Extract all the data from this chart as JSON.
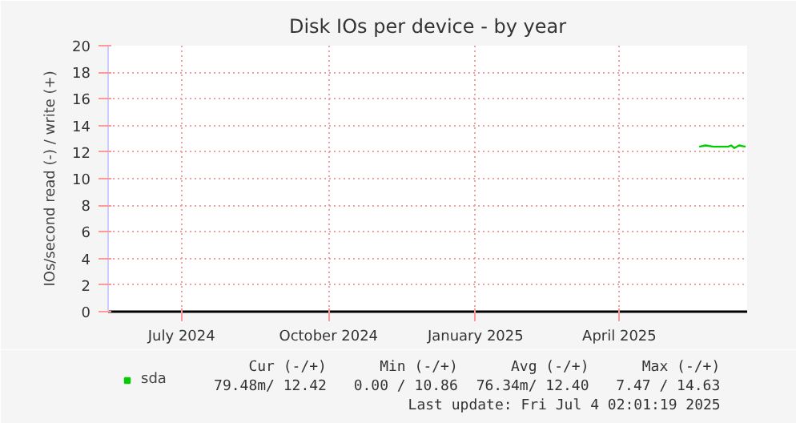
{
  "chart_data": {
    "type": "line",
    "title": "Disk IOs per device - by year",
    "ylabel": "IOs/second read (-) / write (+)",
    "xlim": [
      "2024-05-16",
      "2025-06-20"
    ],
    "xticks": [
      {
        "value": "2024-07-01",
        "label": "July 2024"
      },
      {
        "value": "2024-10-01",
        "label": "October 2024"
      },
      {
        "value": "2025-01-01",
        "label": "January 2025"
      },
      {
        "value": "2025-04-01",
        "label": "April 2025"
      }
    ],
    "ylim": [
      0,
      20
    ],
    "yticks": [
      0,
      2,
      4,
      6,
      8,
      10,
      12,
      14,
      16,
      18,
      20
    ],
    "series": [
      {
        "name": "sda",
        "color": "#00cc00",
        "x": [
          "2025-05-21",
          "2025-05-25",
          "2025-05-30",
          "2025-06-04",
          "2025-06-08",
          "2025-06-10",
          "2025-06-12",
          "2025-06-15",
          "2025-06-19"
        ],
        "values": [
          12.4,
          12.5,
          12.4,
          12.4,
          12.4,
          12.5,
          12.3,
          12.5,
          12.4
        ]
      }
    ],
    "grid": true,
    "legend": "bottom left",
    "line_style": "solid",
    "marker": "none",
    "annotations": [
      "Cur (-/+)",
      "Min (-/+)",
      "Avg (-/+)",
      "Max (-/+)",
      "79.48m/ 12.42",
      "0.00 / 10.86",
      "76.34m/ 12.40",
      "7.47 / 14.63",
      "Last update: Fri Jul  4 02:01:19 2025"
    ]
  }
}
